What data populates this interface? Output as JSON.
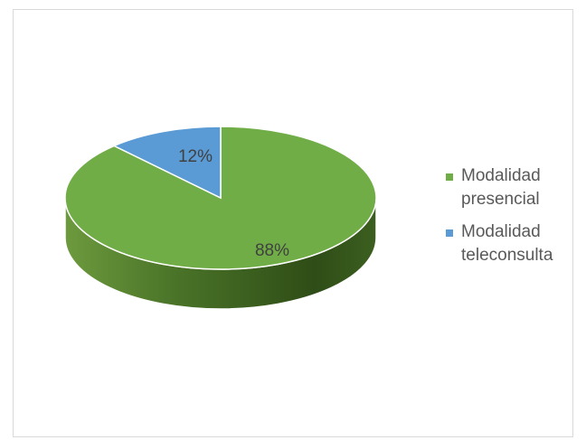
{
  "chart_data": {
    "type": "pie",
    "style": "3d",
    "title": "",
    "slices": [
      {
        "label": "Modalidad presencial",
        "label_lines": [
          "Modalidad",
          "presencial"
        ],
        "value": 88,
        "display": "88%",
        "color": "#70ad47"
      },
      {
        "label": "Modalidad teleconsulta",
        "label_lines": [
          "Modalidad",
          "teleconsulta"
        ],
        "value": 12,
        "display": "12%",
        "color": "#5b9bd5"
      }
    ],
    "legend_position": "right",
    "show_data_labels": true
  }
}
